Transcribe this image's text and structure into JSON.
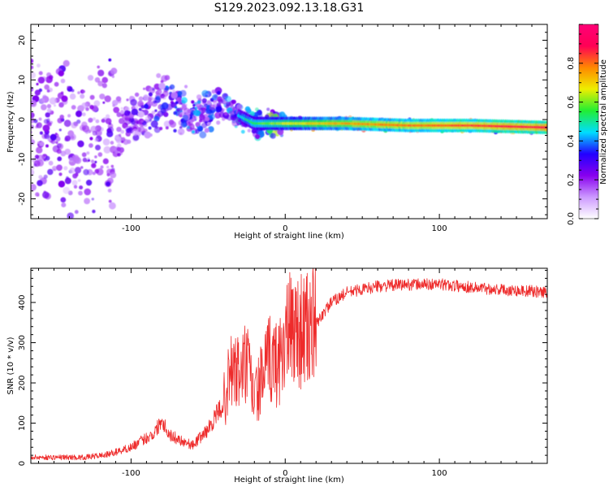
{
  "figure": {
    "title": "S129.2023.092.13.18.G31"
  },
  "colors": {
    "snr_line": "#ee2b2b",
    "axis": "#000000",
    "background": "#ffffff"
  },
  "chart_data": [
    {
      "type": "heatmap",
      "xlabel": "Height of straight line (km)",
      "ylabel": "Frequency (Hz)",
      "xlim": [
        -165,
        170
      ],
      "ylim": [
        -25,
        24
      ],
      "x_ticks": [
        -100,
        0,
        100
      ],
      "y_ticks": [
        -20,
        -10,
        0,
        10,
        20
      ],
      "grid": false,
      "colorbar": {
        "label": "Normalized spectral amplitude",
        "range": [
          0.0,
          1.0
        ],
        "ticks": [
          0.0,
          0.2,
          0.4,
          0.6,
          0.8
        ],
        "colormap": [
          "#ffffff",
          "#cc99ff",
          "#8800ee",
          "#2200ff",
          "#00ddff",
          "#22ee33",
          "#eeee00",
          "#ff8800",
          "#ff0055",
          "#ff0077"
        ]
      },
      "ridge": [
        {
          "x": -125,
          "y": -3,
          "amp": 0.12
        },
        {
          "x": -100,
          "y": -1,
          "amp": 0.25
        },
        {
          "x": -80,
          "y": 5,
          "amp": 0.35
        },
        {
          "x": -60,
          "y": 1,
          "amp": 0.4
        },
        {
          "x": -40,
          "y": 3,
          "amp": 0.35
        },
        {
          "x": -20,
          "y": -1,
          "amp": 0.55
        },
        {
          "x": 0,
          "y": -1,
          "amp": 0.65
        },
        {
          "x": 40,
          "y": -1,
          "amp": 0.75
        },
        {
          "x": 80,
          "y": -1.5,
          "amp": 0.8
        },
        {
          "x": 120,
          "y": -1.5,
          "amp": 0.85
        },
        {
          "x": 170,
          "y": -2,
          "amp": 0.9
        }
      ]
    },
    {
      "type": "line",
      "xlabel": "Height of straight line (km)",
      "ylabel": "SNR (10 * v/v)",
      "xlim": [
        -165,
        170
      ],
      "ylim": [
        0,
        485
      ],
      "x_ticks": [
        -100,
        0,
        100
      ],
      "y_ticks": [
        0,
        100,
        200,
        300,
        400
      ],
      "grid": false,
      "x": [
        -165,
        -130,
        -115,
        -100,
        -85,
        -80,
        -75,
        -60,
        -50,
        -40,
        -35,
        -30,
        -25,
        -20,
        -15,
        -10,
        -5,
        0,
        5,
        10,
        15,
        20,
        25,
        30,
        40,
        60,
        80,
        100,
        120,
        140,
        160,
        170
      ],
      "y": [
        15,
        15,
        22,
        40,
        75,
        110,
        70,
        45,
        85,
        150,
        230,
        220,
        250,
        160,
        210,
        260,
        245,
        310,
        340,
        330,
        330,
        345,
        375,
        400,
        425,
        440,
        445,
        445,
        438,
        432,
        428,
        425
      ]
    }
  ]
}
